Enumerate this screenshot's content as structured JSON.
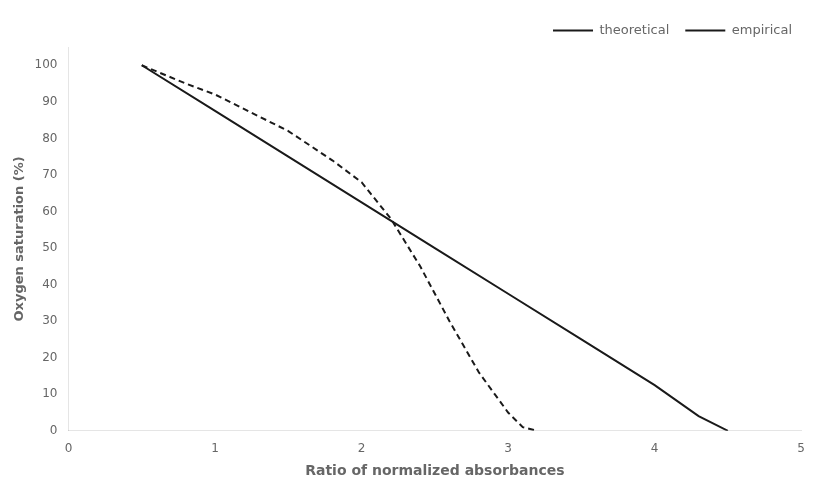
{
  "chart_data": {
    "type": "line",
    "x_label": "Ratio of normalized absorbances",
    "y_label": "Oxygen saturation (%)",
    "xlim": [
      0,
      5
    ],
    "ylim": [
      0,
      105
    ],
    "xticks": [
      0,
      1,
      2,
      3,
      4,
      5
    ],
    "yticks": [
      0,
      10,
      20,
      30,
      40,
      50,
      60,
      70,
      80,
      90,
      100
    ],
    "series": [
      {
        "name": "theoretical",
        "color": "#1a1a1a",
        "line_style": "solid",
        "x": [
          0.5,
          1.0,
          1.5,
          2.0,
          2.5,
          3.0,
          3.5,
          4.0,
          4.3,
          4.5
        ],
        "values": [
          100,
          87.5,
          75,
          62.5,
          50,
          37.5,
          25,
          12.5,
          4,
          0
        ]
      },
      {
        "name": "empirical",
        "color": "#1a1a1a",
        "line_style": "dashed",
        "x": [
          0.5,
          0.8,
          1.0,
          1.2,
          1.5,
          1.8,
          2.0,
          2.2,
          2.4,
          2.6,
          2.8,
          3.0,
          3.1,
          3.2
        ],
        "values": [
          100,
          95,
          92,
          88,
          82,
          74,
          68,
          58,
          45,
          30,
          16,
          5,
          1,
          0
        ]
      }
    ],
    "legend": "upper right",
    "grid": false
  }
}
